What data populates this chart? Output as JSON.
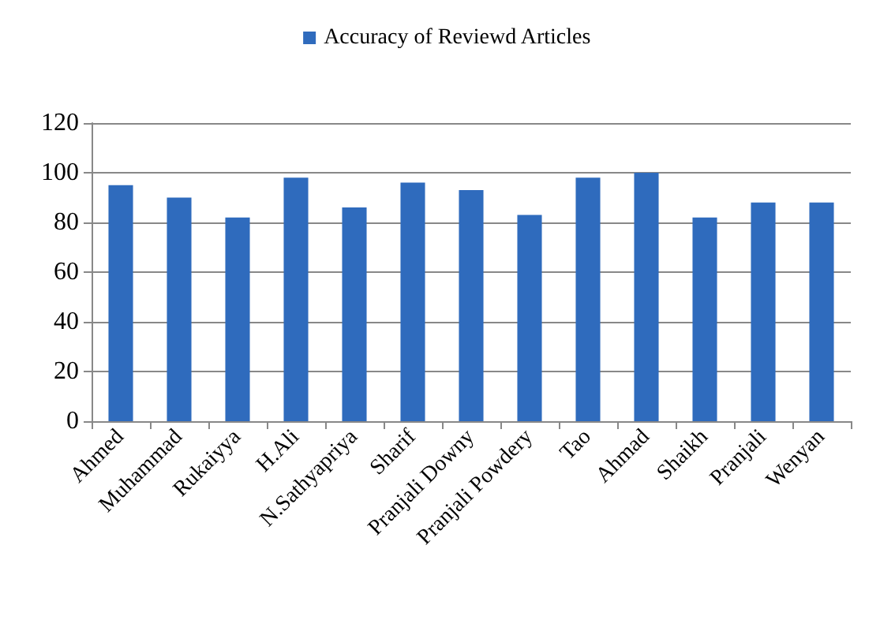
{
  "chart_data": {
    "type": "bar",
    "categories": [
      "Ahmed",
      "Muhammad",
      "Rukaiyya",
      "H.Ali",
      "N.Sathyapriya",
      "Sharif",
      "Pranjali Downy",
      "Pranjali Powdery",
      "Tao",
      "Ahmad",
      "Shaikh",
      "Pranjali",
      "Wenyan"
    ],
    "series": [
      {
        "name": "Accuracy of Reviewd Articles",
        "color": "#2f6bbd",
        "values": [
          95,
          90,
          82,
          98,
          86,
          96,
          93,
          83,
          98,
          100,
          82,
          88,
          88
        ]
      }
    ],
    "ylim": [
      0,
      120
    ],
    "yticks": [
      0,
      20,
      40,
      60,
      80,
      100,
      120
    ],
    "grid": "y",
    "legend": "top"
  }
}
